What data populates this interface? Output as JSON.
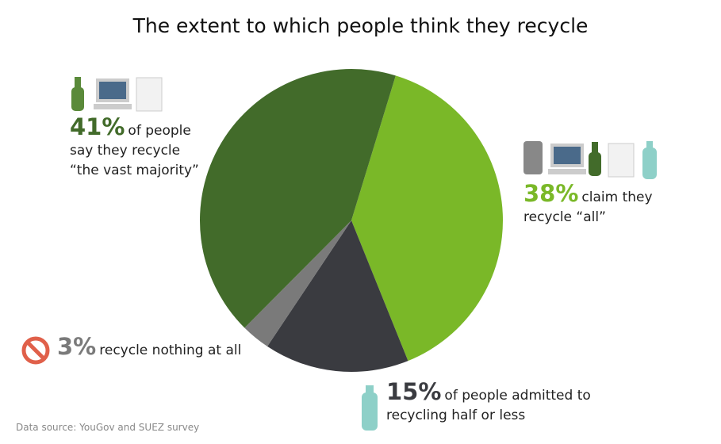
{
  "chart_data": {
    "type": "pie",
    "title": "The extent to which people think they recycle",
    "values": [
      38,
      15,
      3,
      41
    ],
    "value_labels": [
      "38%",
      "15%",
      "3%",
      "41%"
    ],
    "descriptions": [
      "claim they recycle “all”",
      "of people admitted to recycling half or less",
      "recycle nothing at all",
      "of people say they recycle “the vast majority”"
    ],
    "colors": [
      "#7ab828",
      "#3a3b40",
      "#7a7a7a",
      "#426b2a"
    ],
    "source": "Data source: YouGov and SUEZ survey"
  }
}
